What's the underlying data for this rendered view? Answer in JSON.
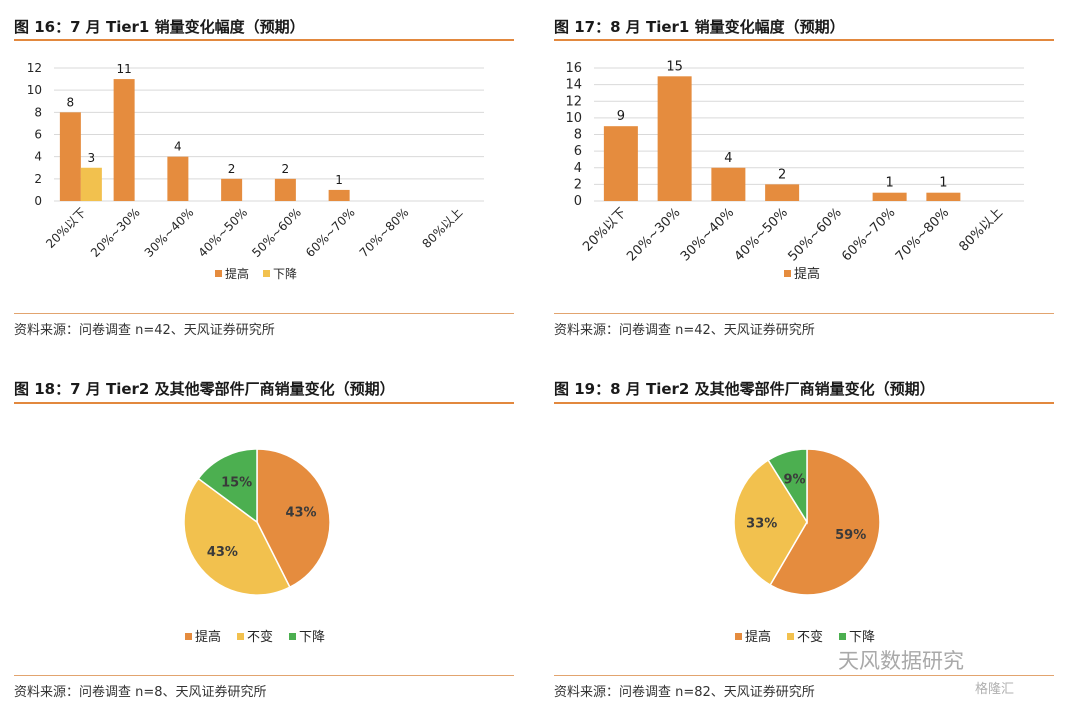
{
  "colors": {
    "raise": "#e58c3e",
    "lower_bar": "#f2c14e",
    "flat": "#f2c14e",
    "drop_pie": "#4caf50",
    "grid": "#d9d9d9",
    "accent": "#e2883e"
  },
  "panels": [
    {
      "title": "图 16：7 月 Tier1 销量变化幅度（预期）",
      "source": "资料来源：问卷调查 n=42、天风证券研究所",
      "chart_data": {
        "type": "bar",
        "categories": [
          "20%以下",
          "20%~30%",
          "30%~40%",
          "40%~50%",
          "50%~60%",
          "60%~70%",
          "70%~80%",
          "80%以上"
        ],
        "series": [
          {
            "name": "提高",
            "values": [
              8,
              11,
              4,
              2,
              2,
              1,
              null,
              null
            ],
            "color": "#e58c3e"
          },
          {
            "name": "下降",
            "values": [
              3,
              null,
              null,
              null,
              null,
              null,
              null,
              null
            ],
            "color": "#f2c14e"
          }
        ],
        "yticks": [
          "0",
          "2",
          "4",
          "6",
          "8",
          "10",
          "12"
        ],
        "ylim": [
          0,
          12
        ],
        "grid": true,
        "legend": "bottom"
      }
    },
    {
      "title": "图 17：8 月 Tier1 销量变化幅度（预期）",
      "source": "资料来源：问卷调查 n=42、天风证券研究所",
      "chart_data": {
        "type": "bar",
        "categories": [
          "20%以下",
          "20%~30%",
          "30%~40%",
          "40%~50%",
          "50%~60%",
          "60%~70%",
          "70%~80%",
          "80%以上"
        ],
        "series": [
          {
            "name": "提高",
            "values": [
              9,
              15,
              4,
              2,
              null,
              1,
              1,
              null
            ],
            "color": "#e58c3e"
          }
        ],
        "yticks": [
          "0",
          "2",
          "4",
          "6",
          "8",
          "10",
          "12",
          "14",
          "16"
        ],
        "ylim": [
          0,
          16
        ],
        "grid": true,
        "legend": "bottom"
      }
    },
    {
      "title": "图 18：7 月 Tier2 及其他零部件厂商销量变化（预期）",
      "source": "资料来源：问卷调查 n=8、天风证券研究所",
      "chart_data": {
        "type": "pie",
        "slices": [
          {
            "name": "提高",
            "value": 43,
            "label": "43%",
            "color": "#e58c3e"
          },
          {
            "name": "不变",
            "value": 43,
            "label": "43%",
            "color": "#f2c14e"
          },
          {
            "name": "下降",
            "value": 15,
            "label": "15%",
            "color": "#4caf50"
          }
        ],
        "legend": "bottom"
      }
    },
    {
      "title": "图 19：8 月 Tier2 及其他零部件厂商销量变化（预期）",
      "source": "资料来源：问卷调查 n=82、天风证券研究所",
      "chart_data": {
        "type": "pie",
        "slices": [
          {
            "name": "提高",
            "value": 59,
            "label": "59%",
            "color": "#e58c3e"
          },
          {
            "name": "不变",
            "value": 33,
            "label": "33%",
            "color": "#f2c14e"
          },
          {
            "name": "下降",
            "value": 9,
            "label": "9%",
            "color": "#4caf50"
          }
        ],
        "legend": "bottom"
      }
    }
  ],
  "watermark": {
    "text": "天风数据研究",
    "logo_text": "格隆汇"
  }
}
